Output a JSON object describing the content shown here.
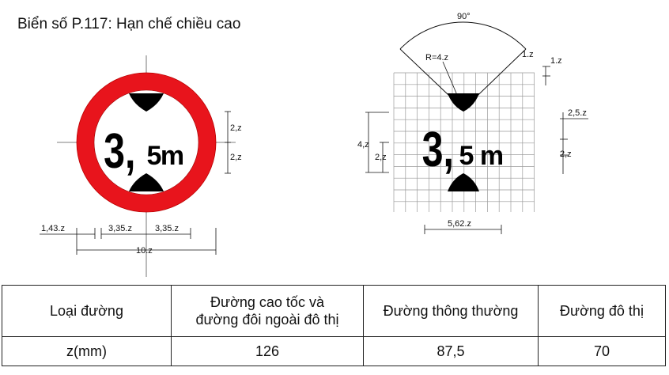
{
  "title": "Biển số P.117: Hạn chế chiều cao",
  "sign": {
    "value_big": "3,",
    "value_small": "5",
    "unit": "m",
    "ring_color": "#e8141c"
  },
  "left_dims": {
    "d1": "1,43.z",
    "d2": "3,35.z",
    "d3": "3,35.z",
    "total": "10.z",
    "v1": "2,z",
    "v2": "2,z"
  },
  "right_dims": {
    "angle": "90°",
    "radius": "R=4.z",
    "top_small": "1.z",
    "top_small2": "1.z",
    "right_upper": "2,5.z",
    "right_lower": "2,z",
    "left_outer": "4,z",
    "left_inner": "2,z",
    "bottom": "5,62.z"
  },
  "table": {
    "header": [
      "Loại đường",
      "Đường cao tốc và\nđường đôi ngoài đô thị",
      "Đường thông thường",
      "Đường đô thị"
    ],
    "row_label": "z(mm)",
    "row_values": [
      "126",
      "87,5",
      "70"
    ]
  }
}
